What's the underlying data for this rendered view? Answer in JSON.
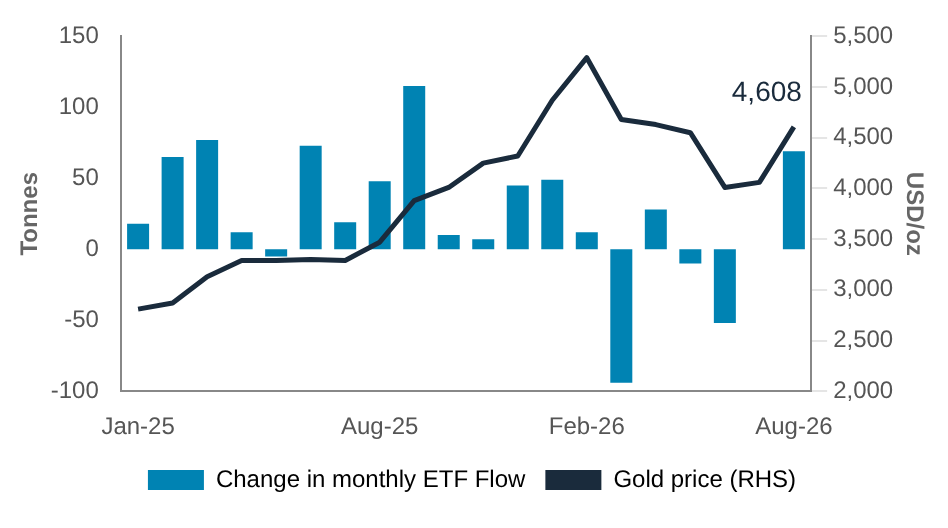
{
  "chart_data": {
    "type": "bar",
    "ylabel": "Tonnes",
    "y2label": "USD/oz",
    "categories": [
      "Jan-25",
      null,
      null,
      null,
      null,
      null,
      null,
      "Aug-25",
      null,
      null,
      null,
      null,
      null,
      "Feb-26",
      null,
      null,
      null,
      null,
      null,
      "Aug-26"
    ],
    "series": [
      {
        "name": "Change in monthly ETF Flow",
        "color": "#0083b3",
        "values": [
          18,
          65,
          77,
          12,
          -5,
          73,
          19,
          48,
          115,
          10,
          7,
          45,
          49,
          12,
          -94,
          28,
          -10,
          -52,
          null,
          69
        ]
      },
      {
        "name": "Gold price (RHS)",
        "type": "line",
        "axis": "y2",
        "color": "#1a2b3c",
        "values": [
          2810,
          2870,
          3130,
          3290,
          3290,
          3300,
          3290,
          3470,
          3880,
          4010,
          4250,
          4320,
          4870,
          5290,
          4680,
          4630,
          4550,
          4010,
          4060,
          4608
        ]
      }
    ],
    "ylim": [
      -100,
      150
    ],
    "yticks": [
      -100,
      -50,
      0,
      50,
      100,
      150
    ],
    "y2lim": [
      2000,
      5500
    ],
    "y2ticks": [
      {
        "value": 2000,
        "label": "2,000"
      },
      {
        "value": 2500,
        "label": "2,500"
      },
      {
        "value": 3000,
        "label": "3,000"
      },
      {
        "value": 3500,
        "label": "3,500"
      },
      {
        "value": 4000,
        "label": "4,000"
      },
      {
        "value": 4500,
        "label": "4,500"
      },
      {
        "value": 5000,
        "label": "5,000"
      },
      {
        "value": 5500,
        "label": "5,500"
      }
    ],
    "annotations": [
      "4,608"
    ],
    "grid": false,
    "legend": "bottom",
    "marker": "none",
    "line_style": "solid"
  }
}
